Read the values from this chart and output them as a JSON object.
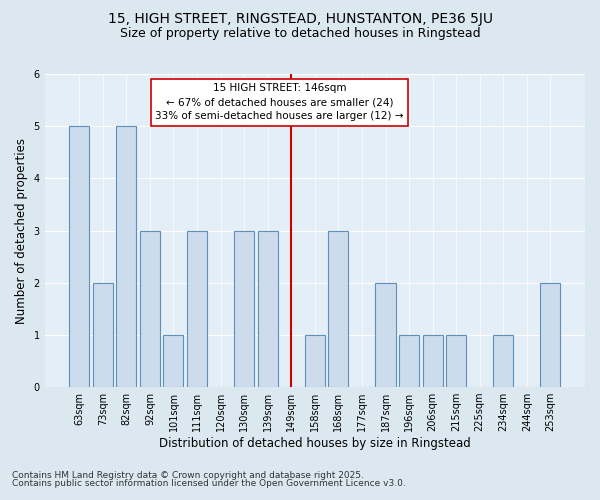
{
  "title_line1": "15, HIGH STREET, RINGSTEAD, HUNSTANTON, PE36 5JU",
  "title_line2": "Size of property relative to detached houses in Ringstead",
  "xlabel": "Distribution of detached houses by size in Ringstead",
  "ylabel": "Number of detached properties",
  "categories": [
    "63sqm",
    "73sqm",
    "82sqm",
    "92sqm",
    "101sqm",
    "111sqm",
    "120sqm",
    "130sqm",
    "139sqm",
    "149sqm",
    "158sqm",
    "168sqm",
    "177sqm",
    "187sqm",
    "196sqm",
    "206sqm",
    "215sqm",
    "225sqm",
    "234sqm",
    "244sqm",
    "253sqm"
  ],
  "values": [
    5,
    2,
    5,
    3,
    1,
    3,
    0,
    3,
    3,
    0,
    1,
    3,
    0,
    2,
    1,
    1,
    1,
    0,
    1,
    0,
    2
  ],
  "bar_color": "#ccdcec",
  "bar_edge_color": "#6090b8",
  "highlight_index": 9,
  "highlight_line_color": "#cc0000",
  "annotation_text": "15 HIGH STREET: 146sqm\n← 67% of detached houses are smaller (24)\n33% of semi-detached houses are larger (12) →",
  "annotation_box_color": "#ffffff",
  "annotation_box_edge": "#cc0000",
  "ylim": [
    0,
    6
  ],
  "yticks": [
    0,
    1,
    2,
    3,
    4,
    5,
    6
  ],
  "footnote_line1": "Contains HM Land Registry data © Crown copyright and database right 2025.",
  "footnote_line2": "Contains public sector information licensed under the Open Government Licence v3.0.",
  "bg_color": "#dce8f0",
  "plot_bg_color": "#e4eef6",
  "title_fontsize": 10,
  "subtitle_fontsize": 9,
  "axis_label_fontsize": 8.5,
  "tick_fontsize": 7,
  "footnote_fontsize": 6.5,
  "annotation_fontsize": 7.5
}
